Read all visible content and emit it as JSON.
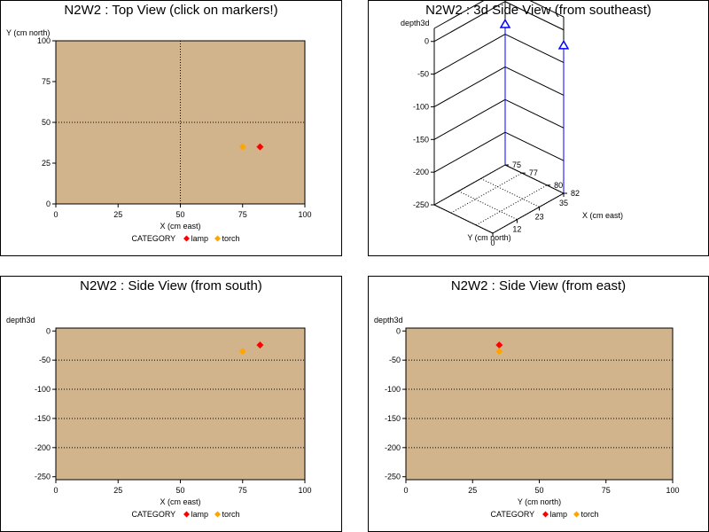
{
  "legend": {
    "title": "CATEGORY",
    "items": [
      {
        "label": "lamp",
        "color": "#ff0000"
      },
      {
        "label": "torch",
        "color": "#ffa500"
      }
    ]
  },
  "colors": {
    "plot_bg": "#d2b48c",
    "lamp": "#ff0000",
    "torch": "#ffa500",
    "marker3d": "#0000ff"
  },
  "panels": {
    "top": {
      "title": "N2W2 : Top View (click on markers!)"
    },
    "side3d": {
      "title": "N2W2 : 3d Side View (from southeast)"
    },
    "south": {
      "title": "N2W2 : Side View (from south)"
    },
    "east": {
      "title": "N2W2 : Side View (from east)"
    }
  },
  "chart_data": [
    {
      "type": "scatter",
      "title": "N2W2 : Top View (click on markers!)",
      "xlabel": "X (cm east)",
      "ylabel": "Y (cm north)",
      "xlim": [
        0,
        100
      ],
      "ylim": [
        0,
        100
      ],
      "xticks": [
        0,
        25,
        50,
        75,
        100
      ],
      "yticks": [
        0,
        25,
        50,
        75,
        100
      ],
      "reference_lines": {
        "x": [
          50
        ],
        "y": [
          50
        ]
      },
      "legend": "bottom",
      "series": [
        {
          "name": "lamp",
          "points": [
            {
              "x": 82,
              "y": 35
            }
          ]
        },
        {
          "name": "torch",
          "points": [
            {
              "x": 75,
              "y": 35
            }
          ]
        }
      ]
    },
    {
      "type": "scatter",
      "title": "N2W2 : 3d Side View (from southeast)",
      "xlabel": "X (cm east)",
      "ylabel": "Y (cm north)",
      "zlabel": "depth3d",
      "xticks": [
        75,
        77,
        80,
        82
      ],
      "yticks": [
        0,
        12,
        23,
        35
      ],
      "zticks": [
        0,
        -50,
        -100,
        -150,
        -200,
        -250
      ],
      "xlim": [
        75,
        82
      ],
      "ylim": [
        0,
        35
      ],
      "zlim": [
        -250,
        20
      ],
      "points": [
        {
          "x": 82,
          "y": 35,
          "z": -24
        },
        {
          "x": 75,
          "y": 35,
          "z": -35
        }
      ]
    },
    {
      "type": "scatter",
      "title": "N2W2 : Side View (from south)",
      "xlabel": "X (cm east)",
      "ylabel": "depth3d",
      "xlim": [
        0,
        100
      ],
      "ylim": [
        -255,
        5
      ],
      "xticks": [
        0,
        25,
        50,
        75,
        100
      ],
      "yticks": [
        0,
        -50,
        -100,
        -150,
        -200,
        -250
      ],
      "reference_lines": {
        "y": [
          -50,
          -100,
          -150,
          -200
        ]
      },
      "legend": "bottom",
      "series": [
        {
          "name": "lamp",
          "points": [
            {
              "x": 82,
              "y": -24
            }
          ]
        },
        {
          "name": "torch",
          "points": [
            {
              "x": 75,
              "y": -35
            }
          ]
        }
      ]
    },
    {
      "type": "scatter",
      "title": "N2W2 : Side View (from east)",
      "xlabel": "Y (cm north)",
      "ylabel": "depth3d",
      "xlim": [
        0,
        100
      ],
      "ylim": [
        -255,
        5
      ],
      "xticks": [
        0,
        25,
        50,
        75,
        100
      ],
      "yticks": [
        0,
        -50,
        -100,
        -150,
        -200,
        -250
      ],
      "reference_lines": {
        "y": [
          -50,
          -100,
          -150,
          -200
        ]
      },
      "legend": "bottom",
      "series": [
        {
          "name": "lamp",
          "points": [
            {
              "x": 35,
              "y": -24
            }
          ]
        },
        {
          "name": "torch",
          "points": [
            {
              "x": 35,
              "y": -35
            }
          ]
        }
      ]
    }
  ]
}
